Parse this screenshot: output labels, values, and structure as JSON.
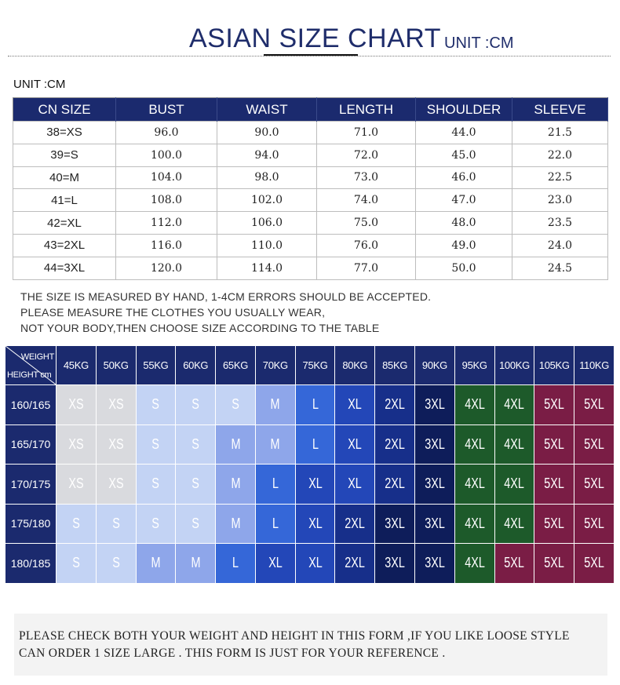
{
  "header": {
    "title": "ASIAN SIZE CHART",
    "unit": "UNIT :CM"
  },
  "size_table": {
    "unit_label": "UNIT :CM",
    "columns": [
      "CN SIZE",
      "BUST",
      "WAIST",
      "LENGTH",
      "SHOULDER",
      "SLEEVE"
    ],
    "rows": [
      [
        "38=XS",
        "96.0",
        "90.0",
        "71.0",
        "44.0",
        "21.5"
      ],
      [
        "39=S",
        "100.0",
        "94.0",
        "72.0",
        "45.0",
        "22.0"
      ],
      [
        "40=M",
        "104.0",
        "98.0",
        "73.0",
        "46.0",
        "22.5"
      ],
      [
        "41=L",
        "108.0",
        "102.0",
        "74.0",
        "47.0",
        "23.0"
      ],
      [
        "42=XL",
        "112.0",
        "106.0",
        "75.0",
        "48.0",
        "23.5"
      ],
      [
        "43=2XL",
        "116.0",
        "110.0",
        "76.0",
        "49.0",
        "24.0"
      ],
      [
        "44=3XL",
        "120.0",
        "114.0",
        "77.0",
        "50.0",
        "24.5"
      ]
    ]
  },
  "note": {
    "line1": "THE SIZE IS MEASURED BY HAND, 1-4CM ERRORS SHOULD BE ACCEPTED.",
    "line2": "PLEASE MEASURE THE CLOTHES YOU  USUALLY WEAR,",
    "line3": "NOT YOUR BODY,THEN CHOOSE SIZE ACCORDING TO THE TABLE"
  },
  "weight_grid": {
    "corner_weight": "WEIGHT",
    "corner_height": "HEIGHT cm",
    "weights": [
      "45KG",
      "50KG",
      "55KG",
      "60KG",
      "65KG",
      "70KG",
      "75KG",
      "80KG",
      "85KG",
      "90KG",
      "95KG",
      "100KG",
      "105KG",
      "110KG"
    ],
    "rows": [
      {
        "height": "160/165",
        "sizes": [
          "XS",
          "XS",
          "S",
          "S",
          "S",
          "M",
          "L",
          "XL",
          "2XL",
          "3XL",
          "4XL",
          "4XL",
          "5XL",
          "5XL"
        ]
      },
      {
        "height": "165/170",
        "sizes": [
          "XS",
          "XS",
          "S",
          "S",
          "M",
          "M",
          "L",
          "XL",
          "2XL",
          "3XL",
          "4XL",
          "4XL",
          "5XL",
          "5XL"
        ]
      },
      {
        "height": "170/175",
        "sizes": [
          "XS",
          "XS",
          "S",
          "S",
          "M",
          "L",
          "XL",
          "XL",
          "2XL",
          "3XL",
          "4XL",
          "4XL",
          "5XL",
          "5XL"
        ]
      },
      {
        "height": "175/180",
        "sizes": [
          "S",
          "S",
          "S",
          "S",
          "M",
          "L",
          "XL",
          "2XL",
          "3XL",
          "3XL",
          "4XL",
          "4XL",
          "5XL",
          "5XL"
        ]
      },
      {
        "height": "180/185",
        "sizes": [
          "S",
          "S",
          "M",
          "M",
          "L",
          "XL",
          "XL",
          "2XL",
          "3XL",
          "3XL",
          "4XL",
          "5XL",
          "5XL",
          "5XL"
        ]
      }
    ],
    "size_colors": {
      "XS": "#d9dade",
      "S": "#c3d3f4",
      "M": "#8ea6ea",
      "L": "#3567d8",
      "XL": "#2347b8",
      "2XL": "#172f8a",
      "3XL": "#0e1d5a",
      "4XL": "#1d5a2a",
      "5XL": "#7a1d45"
    }
  },
  "footer": {
    "line1": "PLEASE CHECK BOTH YOUR WEIGHT AND HEIGHT IN THIS FORM ,IF YOU LIKE LOOSE STYLE",
    "line2": "CAN ORDER 1 SIZE LARGE .    THIS FORM IS JUST FOR YOUR REFERENCE ."
  }
}
